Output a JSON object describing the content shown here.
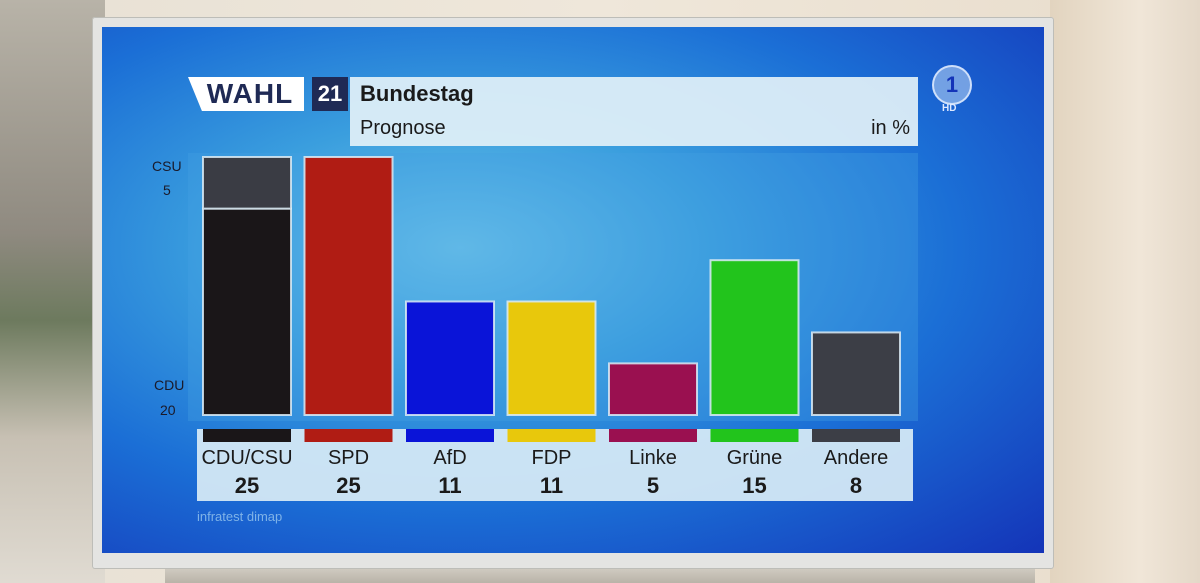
{
  "header": {
    "logo": "WAHL",
    "year": "21",
    "title": "Bundestag",
    "subtitle": "Prognose",
    "unit": "in %"
  },
  "station": {
    "logo": "1",
    "hd": "HD"
  },
  "source": "infratest dimap",
  "side_labels": {
    "csu_name": "CSU",
    "csu_value": "5",
    "cdu_name": "CDU",
    "cdu_value": "20"
  },
  "colors": {
    "CDU": "#1a1618",
    "CSU": "#3a3c44",
    "SPD": "#b01c14",
    "AfD": "#0a14d8",
    "FDP": "#e8c80c",
    "Linke": "#9a1050",
    "Grüne": "#22c41c",
    "Andere": "#3c3e46"
  },
  "chart_data": {
    "type": "bar",
    "title": "Bundestag",
    "subtitle": "Prognose",
    "unit": "in %",
    "categories": [
      "CDU/CSU",
      "SPD",
      "AfD",
      "FDP",
      "Linke",
      "Grüne",
      "Andere"
    ],
    "values": [
      25,
      25,
      11,
      11,
      5,
      15,
      8
    ],
    "stacked_first_bar": {
      "CDU": 20,
      "CSU": 5
    },
    "ylim": [
      0,
      25
    ],
    "grid": false,
    "legend": "none"
  }
}
